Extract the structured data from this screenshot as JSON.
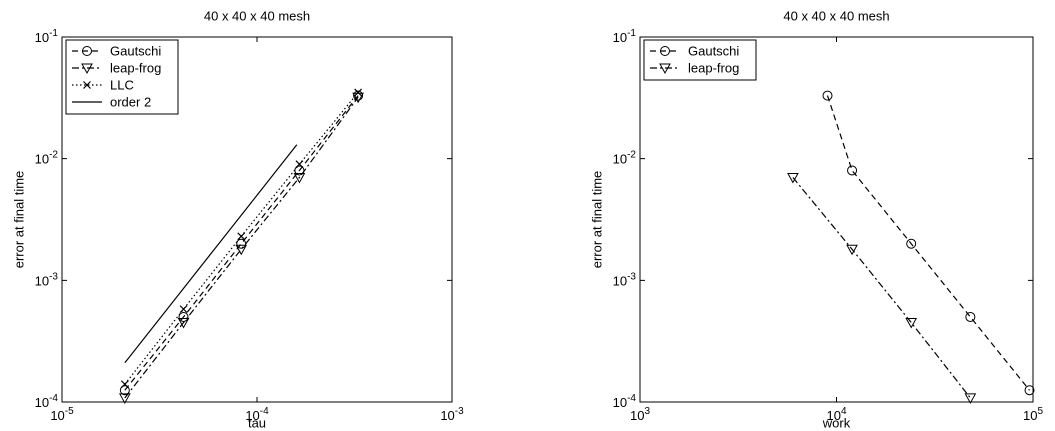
{
  "chart_data": [
    {
      "type": "line",
      "title": "40 x 40 x 40  mesh",
      "xlabel": "tau",
      "ylabel": "error at final time",
      "xscale": "log",
      "yscale": "log",
      "legend": "upper left",
      "xlim": [
        1e-05,
        0.001
      ],
      "ylim": [
        0.0001,
        0.1
      ],
      "xticks": [
        {
          "value": 1e-05,
          "label": "10^-5"
        },
        {
          "value": 0.0001,
          "label": "10^-4"
        },
        {
          "value": 0.001,
          "label": "10^-3"
        }
      ],
      "yticks": [
        {
          "value": 0.0001,
          "label": "10^-4"
        },
        {
          "value": 0.001,
          "label": "10^-3"
        },
        {
          "value": 0.01,
          "label": "10^-2"
        },
        {
          "value": 0.1,
          "label": "10^-1"
        }
      ],
      "series": [
        {
          "name": "Gautschi",
          "color": "#000000",
          "dash": "dashed",
          "marker": "circle",
          "x": [
            2.1e-05,
            4.2e-05,
            8.3e-05,
            0.000165,
            0.00033
          ],
          "values": [
            0.000125,
            0.0005,
            0.002,
            0.008,
            0.033
          ]
        },
        {
          "name": "leap-frog",
          "color": "#000000",
          "dash": "dashdot",
          "marker": "triangle-down",
          "x": [
            2.1e-05,
            4.2e-05,
            8.3e-05,
            0.000165,
            0.00033
          ],
          "values": [
            0.000108,
            0.00045,
            0.0018,
            0.007,
            0.032
          ]
        },
        {
          "name": "LLC",
          "color": "#000000",
          "dash": "dotted",
          "marker": "x",
          "x": [
            2.1e-05,
            4.2e-05,
            8.3e-05,
            0.000165,
            0.00033
          ],
          "values": [
            0.00014,
            0.00058,
            0.0023,
            0.009,
            0.035
          ]
        },
        {
          "name": "order 2",
          "color": "#000000",
          "dash": "solid",
          "marker": "none",
          "x": [
            2.1e-05,
            0.00016
          ],
          "values": [
            0.00021,
            0.013
          ]
        }
      ]
    },
    {
      "type": "line",
      "title": "40 x 40 x 40 mesh",
      "xlabel": "work",
      "ylabel": "error at final time",
      "xscale": "log",
      "yscale": "log",
      "legend": "upper left",
      "xlim": [
        1000,
        100000
      ],
      "ylim": [
        0.0001,
        0.1
      ],
      "xticks": [
        {
          "value": 1000,
          "label": "10^3"
        },
        {
          "value": 10000,
          "label": "10^4"
        },
        {
          "value": 100000,
          "label": "10^5"
        }
      ],
      "yticks": [
        {
          "value": 0.0001,
          "label": "10^-4"
        },
        {
          "value": 0.001,
          "label": "10^-3"
        },
        {
          "value": 0.01,
          "label": "10^-2"
        },
        {
          "value": 0.1,
          "label": "10^-1"
        }
      ],
      "series": [
        {
          "name": "Gautschi",
          "color": "#000000",
          "dash": "dashed",
          "marker": "circle",
          "x": [
            9000,
            12000,
            24000,
            48000,
            96000
          ],
          "values": [
            0.033,
            0.008,
            0.002,
            0.0005,
            0.000125
          ]
        },
        {
          "name": "leap-frog",
          "color": "#000000",
          "dash": "dashdot",
          "marker": "triangle-down",
          "x": [
            6000,
            12000,
            24000,
            48000
          ],
          "values": [
            0.007,
            0.0018,
            0.00045,
            0.000108
          ]
        }
      ]
    }
  ]
}
